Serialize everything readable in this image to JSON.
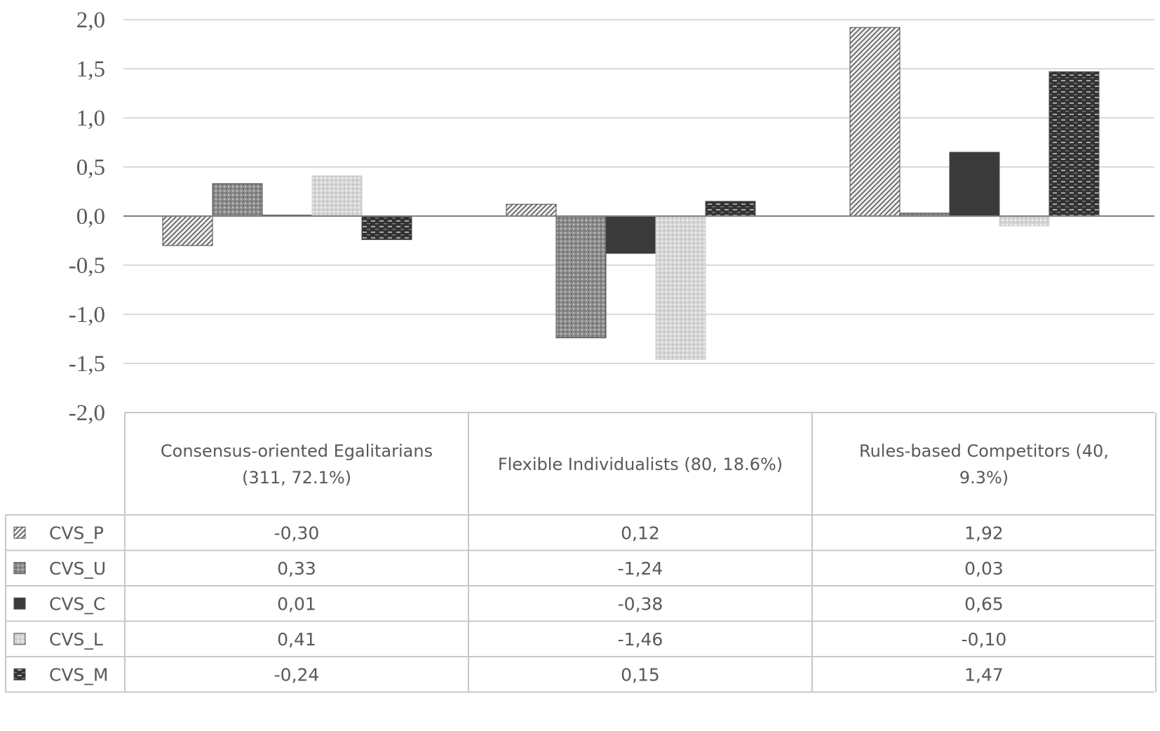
{
  "chart_data": {
    "type": "bar",
    "categories": [
      "Consensus-oriented Egalitarians (311, 72.1%)",
      "Flexible Individualists (80, 18.6%)",
      "Rules-based Competitors (40, 9.3%)"
    ],
    "series": [
      {
        "name": "CVS_P",
        "values": [
          -0.3,
          0.12,
          1.92
        ],
        "labels": [
          "-0,30",
          "0,12",
          "1,92"
        ],
        "pattern": "diag-stripes",
        "color": "#d9d9d9"
      },
      {
        "name": "CVS_U",
        "values": [
          0.33,
          -1.24,
          0.03
        ],
        "labels": [
          "0,33",
          "-1,24",
          "0,03"
        ],
        "pattern": "dots-dark",
        "color": "#808080"
      },
      {
        "name": "CVS_C",
        "values": [
          0.01,
          -0.38,
          0.65
        ],
        "labels": [
          "0,01",
          "-0,38",
          "0,65"
        ],
        "pattern": "solid",
        "color": "#3a3a3a"
      },
      {
        "name": "CVS_L",
        "values": [
          0.41,
          -1.46,
          -0.1
        ],
        "labels": [
          "0,41",
          "-1,46",
          "-0,10"
        ],
        "pattern": "dots-light",
        "color": "#d6d6d6"
      },
      {
        "name": "CVS_M",
        "values": [
          -0.24,
          0.15,
          1.47
        ],
        "labels": [
          "-0,24",
          "0,15",
          "1,47"
        ],
        "pattern": "dashes",
        "color": "#3a3a3a"
      }
    ],
    "yticks": [
      "2,0",
      "1,5",
      "1,0",
      "0,5",
      "0,0",
      "-0,5",
      "-1,0",
      "-1,5",
      "-2,0"
    ],
    "ylim": [
      -2.0,
      2.0
    ],
    "grid": true,
    "legend": "data table below chart"
  }
}
